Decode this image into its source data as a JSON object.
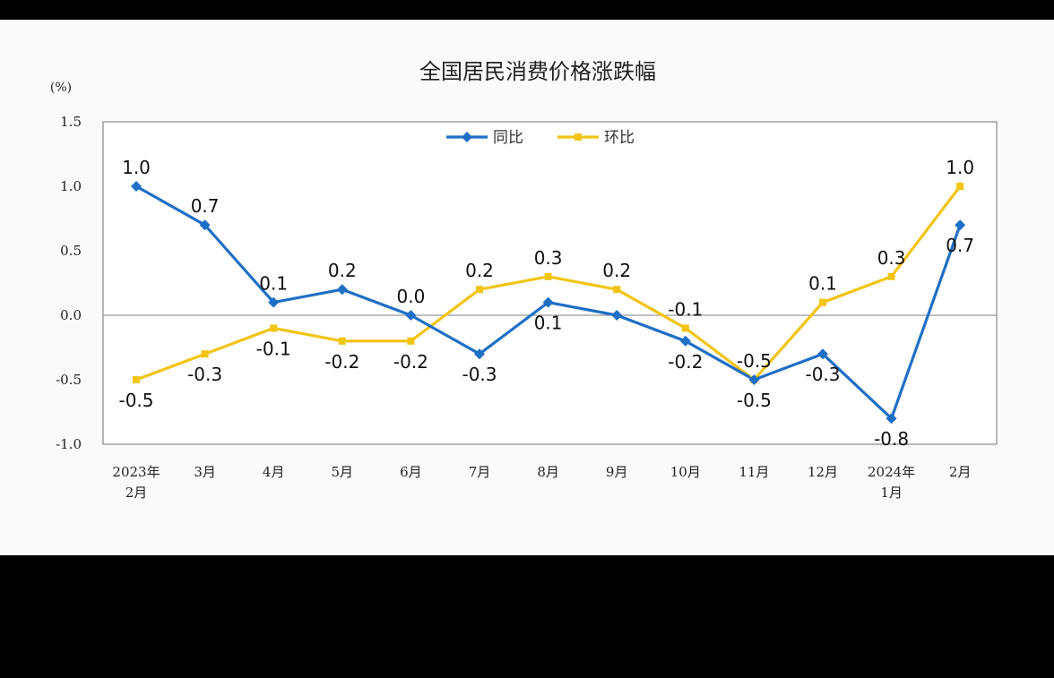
{
  "chart_data": {
    "type": "line",
    "title": "全国居民消费价格涨跌幅",
    "ylabel": "(%)",
    "ylim": [
      -1.0,
      1.5
    ],
    "yticks": [
      "1.5",
      "1.0",
      "0.5",
      "0.0",
      "-0.5",
      "-1.0"
    ],
    "ytick_values": [
      1.5,
      1.0,
      0.5,
      0.0,
      -0.5,
      -1.0
    ],
    "categories": [
      [
        "2023年",
        "2月"
      ],
      [
        "3月"
      ],
      [
        "4月"
      ],
      [
        "5月"
      ],
      [
        "6月"
      ],
      [
        "7月"
      ],
      [
        "8月"
      ],
      [
        "9月"
      ],
      [
        "10月"
      ],
      [
        "11月"
      ],
      [
        "12月"
      ],
      [
        "2024年",
        "1月"
      ],
      [
        "2月"
      ]
    ],
    "legend_position": "top-center",
    "grid": false,
    "series": [
      {
        "name": "同比",
        "color": "#1f6fc5",
        "marker": "diamond",
        "values": [
          1.0,
          0.7,
          0.1,
          0.2,
          0.0,
          -0.3,
          0.1,
          0.0,
          -0.2,
          -0.5,
          -0.3,
          -0.8,
          0.7
        ],
        "labels": [
          "1.0",
          "0.7",
          "0.1",
          "0.2",
          "0.0",
          "-0.3",
          "0.1",
          "",
          "-0.2",
          "-0.5",
          "-0.3",
          "-0.8",
          "0.7"
        ]
      },
      {
        "name": "环比",
        "color": "#f2c414",
        "marker": "square",
        "values": [
          -0.5,
          -0.3,
          -0.1,
          -0.2,
          -0.2,
          0.2,
          0.3,
          0.2,
          -0.1,
          -0.5,
          0.1,
          0.3,
          1.0
        ],
        "labels": [
          "-0.5",
          "-0.3",
          "-0.1",
          "-0.2",
          "-0.2",
          "0.2",
          "0.3",
          "0.2",
          "-0.1",
          "-0.5",
          "0.1",
          "0.3",
          "1.0"
        ]
      }
    ]
  }
}
